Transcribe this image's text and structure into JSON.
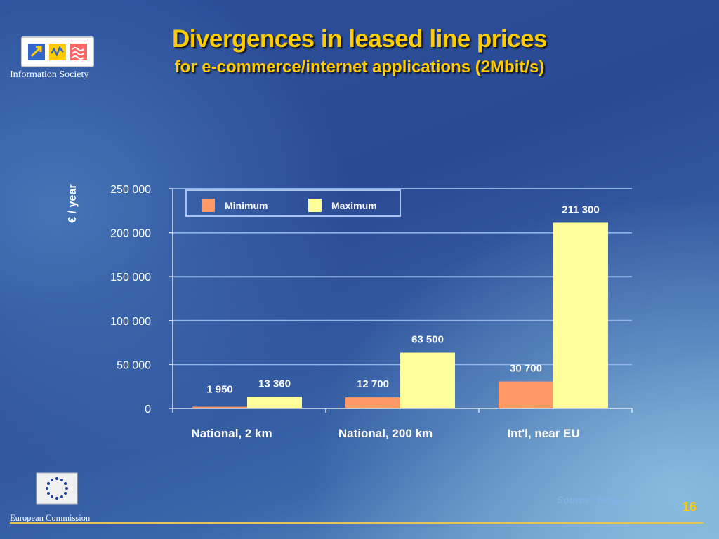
{
  "slide": {
    "title": "Divergences in leased line prices",
    "subtitle": "for e-commerce/internet applications (2Mbit/s)",
    "source": "Source: Teligen",
    "page_number": "16",
    "logo_top_text": "Information Society",
    "logo_bottom_text": "European Commission"
  },
  "colors": {
    "title": "#ffcc00",
    "minimum": "#ff9966",
    "maximum": "#ffff99",
    "gridline": "#8fb4e8",
    "source": "#7fb3e6"
  },
  "chart_data": {
    "type": "bar",
    "title": "",
    "ylabel": "€ / year",
    "xlabel": "",
    "categories": [
      "National, 2 km",
      "National, 200 km",
      "Int'l, near EU"
    ],
    "series": [
      {
        "name": "Minimum",
        "values": [
          1950,
          12700,
          30700
        ],
        "labels": [
          "1 950",
          "12 700",
          "30 700"
        ]
      },
      {
        "name": "Maximum",
        "values": [
          13360,
          63500,
          211300
        ],
        "labels": [
          "13 360",
          "63 500",
          "211 300"
        ]
      }
    ],
    "ylim": [
      0,
      250000
    ],
    "yticks": [
      0,
      50000,
      100000,
      150000,
      200000,
      250000
    ],
    "ytick_labels": [
      "0",
      "50 000",
      "100 000",
      "150 000",
      "200 000",
      "250 000"
    ],
    "grid": true,
    "legend_position": "top-left"
  }
}
